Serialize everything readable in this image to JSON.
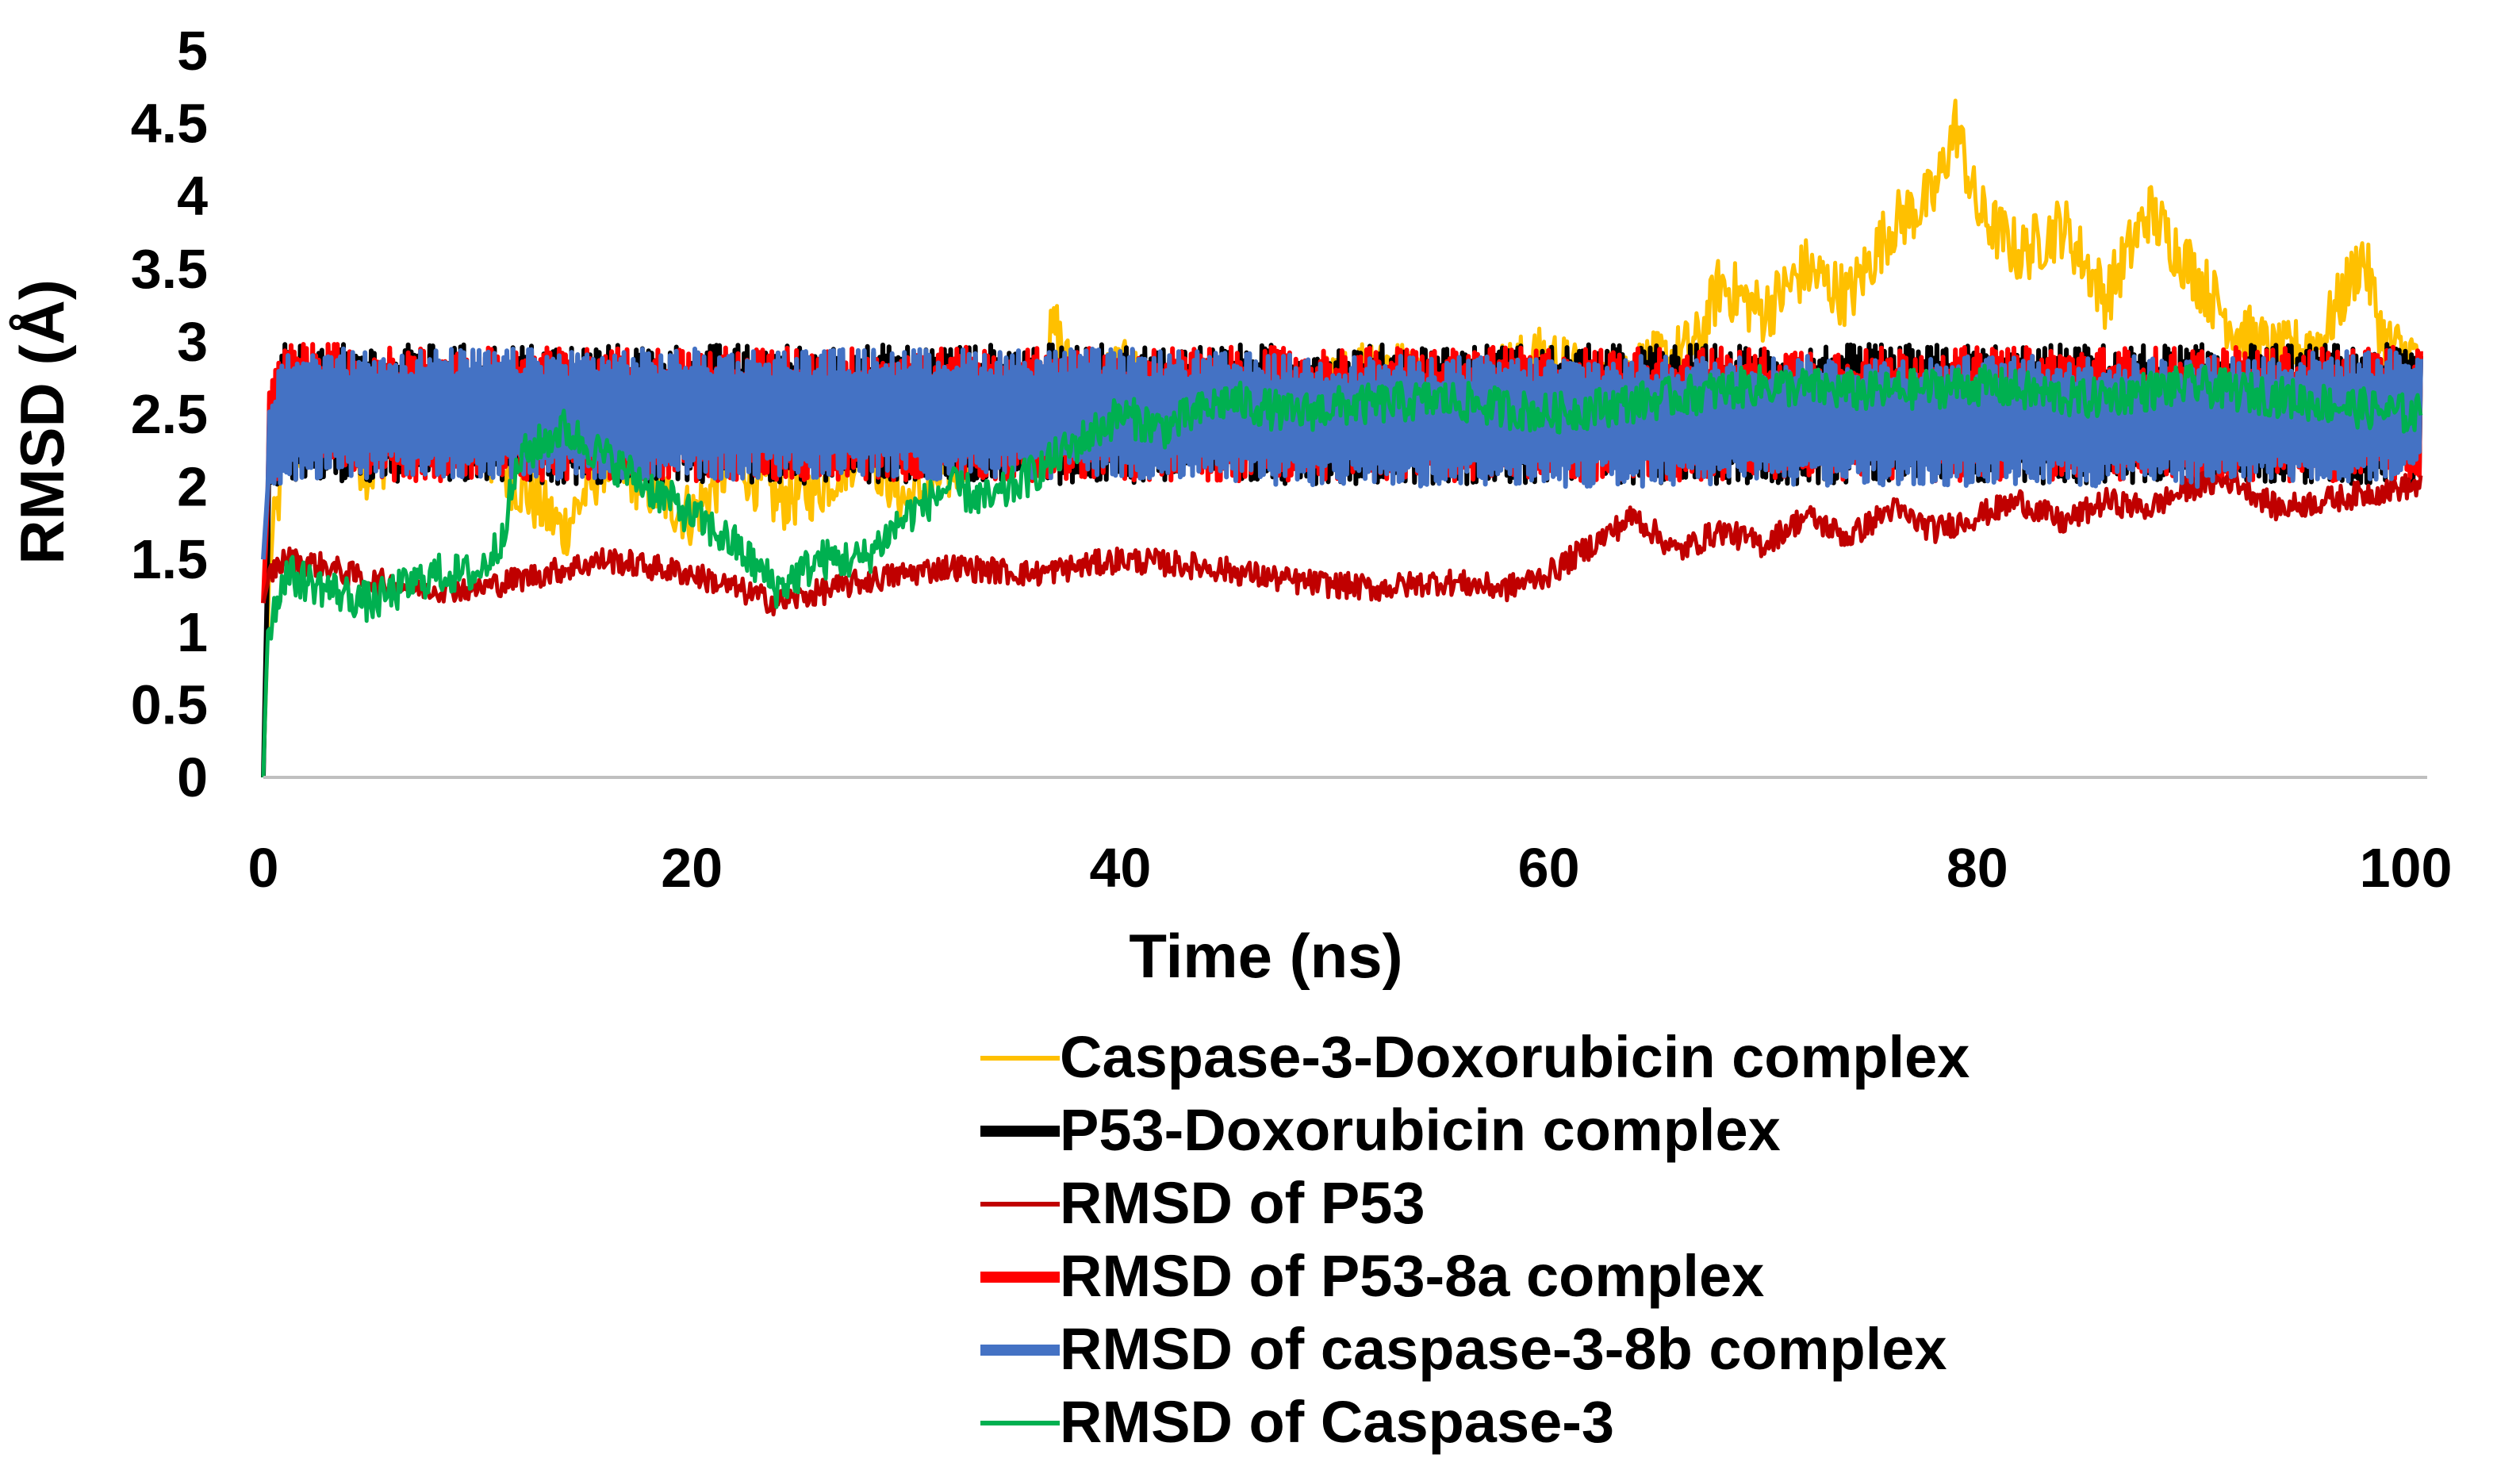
{
  "chart_data": {
    "type": "line",
    "title": "",
    "xlabel": "Time (ns)",
    "ylabel": "RMSD (Å)",
    "xlim": [
      0,
      101
    ],
    "ylim": [
      0,
      5
    ],
    "x_ticks": [
      "0",
      "20",
      "40",
      "60",
      "80",
      "100"
    ],
    "y_ticks": [
      "0",
      "0.5",
      "1",
      "1.5",
      "2",
      "2.5",
      "3",
      "3.5",
      "4",
      "4.5",
      "5"
    ],
    "grid": false,
    "legend_position": "bottom-right",
    "series": [
      {
        "name": "Caspase-3-Doxorubicin complex",
        "color": "#ffc000",
        "x": [
          0,
          0.3,
          1,
          3,
          5,
          8,
          10,
          12,
          14,
          16,
          18,
          20,
          22,
          24,
          26,
          28,
          30,
          32,
          34,
          36,
          37,
          38,
          40,
          44,
          48,
          50,
          52,
          55,
          58,
          60,
          62,
          64,
          66,
          67,
          68,
          70,
          72,
          74,
          76,
          78,
          79,
          80,
          82,
          84,
          86,
          88,
          90,
          92,
          94,
          96,
          98,
          99,
          100
        ],
        "values": [
          0,
          1.5,
          2.2,
          2.5,
          2.1,
          2.6,
          2.3,
          2.0,
          1.7,
          2.2,
          2.0,
          1.8,
          2.2,
          1.9,
          2.0,
          2.3,
          1.9,
          2.1,
          2.4,
          2.7,
          3.1,
          2.6,
          2.8,
          2.5,
          2.6,
          2.7,
          2.9,
          2.6,
          2.8,
          2.9,
          2.7,
          2.8,
          2.9,
          3.0,
          3.4,
          3.2,
          3.5,
          3.3,
          3.8,
          4.0,
          4.5,
          3.9,
          3.6,
          3.8,
          3.3,
          3.9,
          3.5,
          3.1,
          2.9,
          3.0,
          3.6,
          3.0,
          2.9
        ]
      },
      {
        "name": "P53-Doxorubicin complex",
        "color": "#000000",
        "x": [
          0,
          0.3,
          1,
          5,
          10,
          20,
          30,
          40,
          50,
          60,
          70,
          80,
          90,
          100
        ],
        "values": [
          0,
          2.2,
          2.5,
          2.5,
          2.5,
          2.5,
          2.5,
          2.5,
          2.5,
          2.5,
          2.5,
          2.5,
          2.5,
          2.5
        ],
        "band": 0.48
      },
      {
        "name": "RMSD of P53",
        "color": "#c00000",
        "x": [
          0,
          0.3,
          1,
          3,
          5,
          8,
          10,
          13,
          16,
          20,
          24,
          28,
          32,
          36,
          40,
          44,
          48,
          52,
          55,
          58,
          60,
          62,
          64,
          66,
          68,
          70,
          72,
          74,
          76,
          78,
          80,
          82,
          84,
          86,
          88,
          90,
          92,
          94,
          96,
          98,
          100
        ],
        "values": [
          1.2,
          1.4,
          1.5,
          1.45,
          1.35,
          1.3,
          1.3,
          1.4,
          1.5,
          1.4,
          1.2,
          1.35,
          1.45,
          1.4,
          1.5,
          1.45,
          1.35,
          1.3,
          1.35,
          1.3,
          1.4,
          1.6,
          1.8,
          1.55,
          1.7,
          1.6,
          1.8,
          1.65,
          1.85,
          1.7,
          1.8,
          1.9,
          1.75,
          1.9,
          1.85,
          2.0,
          2.05,
          1.85,
          1.9,
          1.95,
          2.0
        ]
      },
      {
        "name": "RMSD of P53-8a complex",
        "color": "#ff0000",
        "x": [
          0,
          0.3,
          1,
          5,
          10,
          20,
          30,
          40,
          50,
          60,
          70,
          80,
          90,
          100
        ],
        "values": [
          1.2,
          2.3,
          2.6,
          2.5,
          2.5,
          2.5,
          2.5,
          2.5,
          2.5,
          2.5,
          2.5,
          2.5,
          2.5,
          2.5
        ],
        "band": 0.46
      },
      {
        "name": "RMSD of caspase-3-8b complex",
        "color": "#4472c4",
        "x": [
          0,
          0.3,
          1,
          5,
          10,
          20,
          30,
          40,
          50,
          60,
          70,
          80,
          90,
          100
        ],
        "values": [
          1.5,
          2.2,
          2.5,
          2.5,
          2.5,
          2.5,
          2.5,
          2.5,
          2.45,
          2.45,
          2.45,
          2.45,
          2.45,
          2.5
        ],
        "band": 0.45
      },
      {
        "name": "RMSD of Caspase-3",
        "color": "#00b050",
        "x": [
          0,
          0.2,
          1,
          3,
          5,
          8,
          10,
          11,
          12,
          14,
          16,
          18,
          20,
          22,
          24,
          26,
          28,
          30,
          32,
          34,
          36,
          38,
          40,
          42,
          45,
          48,
          50,
          55,
          60,
          65,
          70,
          75,
          80,
          85,
          90,
          95,
          100
        ],
        "values": [
          0,
          1.0,
          1.4,
          1.3,
          1.2,
          1.4,
          1.4,
          1.6,
          2.2,
          2.4,
          2.2,
          2.0,
          1.8,
          1.6,
          1.3,
          1.5,
          1.5,
          1.8,
          2.0,
          1.9,
          2.1,
          2.3,
          2.5,
          2.4,
          2.6,
          2.5,
          2.55,
          2.6,
          2.5,
          2.6,
          2.7,
          2.65,
          2.7,
          2.6,
          2.7,
          2.6,
          2.5
        ]
      }
    ]
  }
}
